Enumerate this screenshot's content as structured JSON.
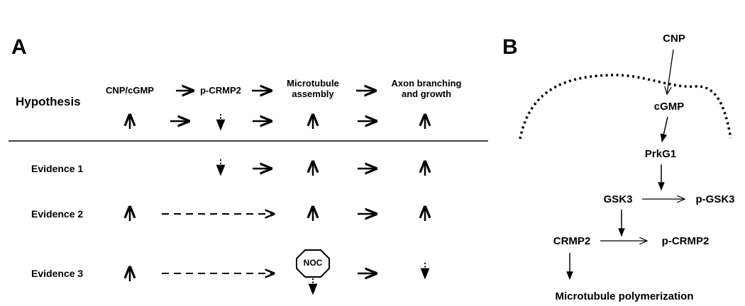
{
  "panel_a": {
    "label": "A",
    "hypothesis_label": "Hypothesis",
    "headers": {
      "cnp_cgmp": "CNP/cGMP",
      "p_crmp2": "p-CRMP2",
      "microtubule_line1": "Microtubule",
      "microtubule_line2": "assembly",
      "axon_line1": "Axon branching",
      "axon_line2": "and growth"
    },
    "evidence_labels": [
      "Evidence 1",
      "Evidence 2",
      "Evidence 3"
    ],
    "noc_label": "NOC"
  },
  "panel_b": {
    "label": "B",
    "nodes": {
      "cnp": "CNP",
      "cgmp": "cGMP",
      "prkg1": "PrkG1",
      "gsk3": "GSK3",
      "p_gsk3": "p-GSK3",
      "crmp2": "CRMP2",
      "p_crmp2": "p-CRMP2",
      "microtubule": "Microtubule polymerization"
    }
  }
}
